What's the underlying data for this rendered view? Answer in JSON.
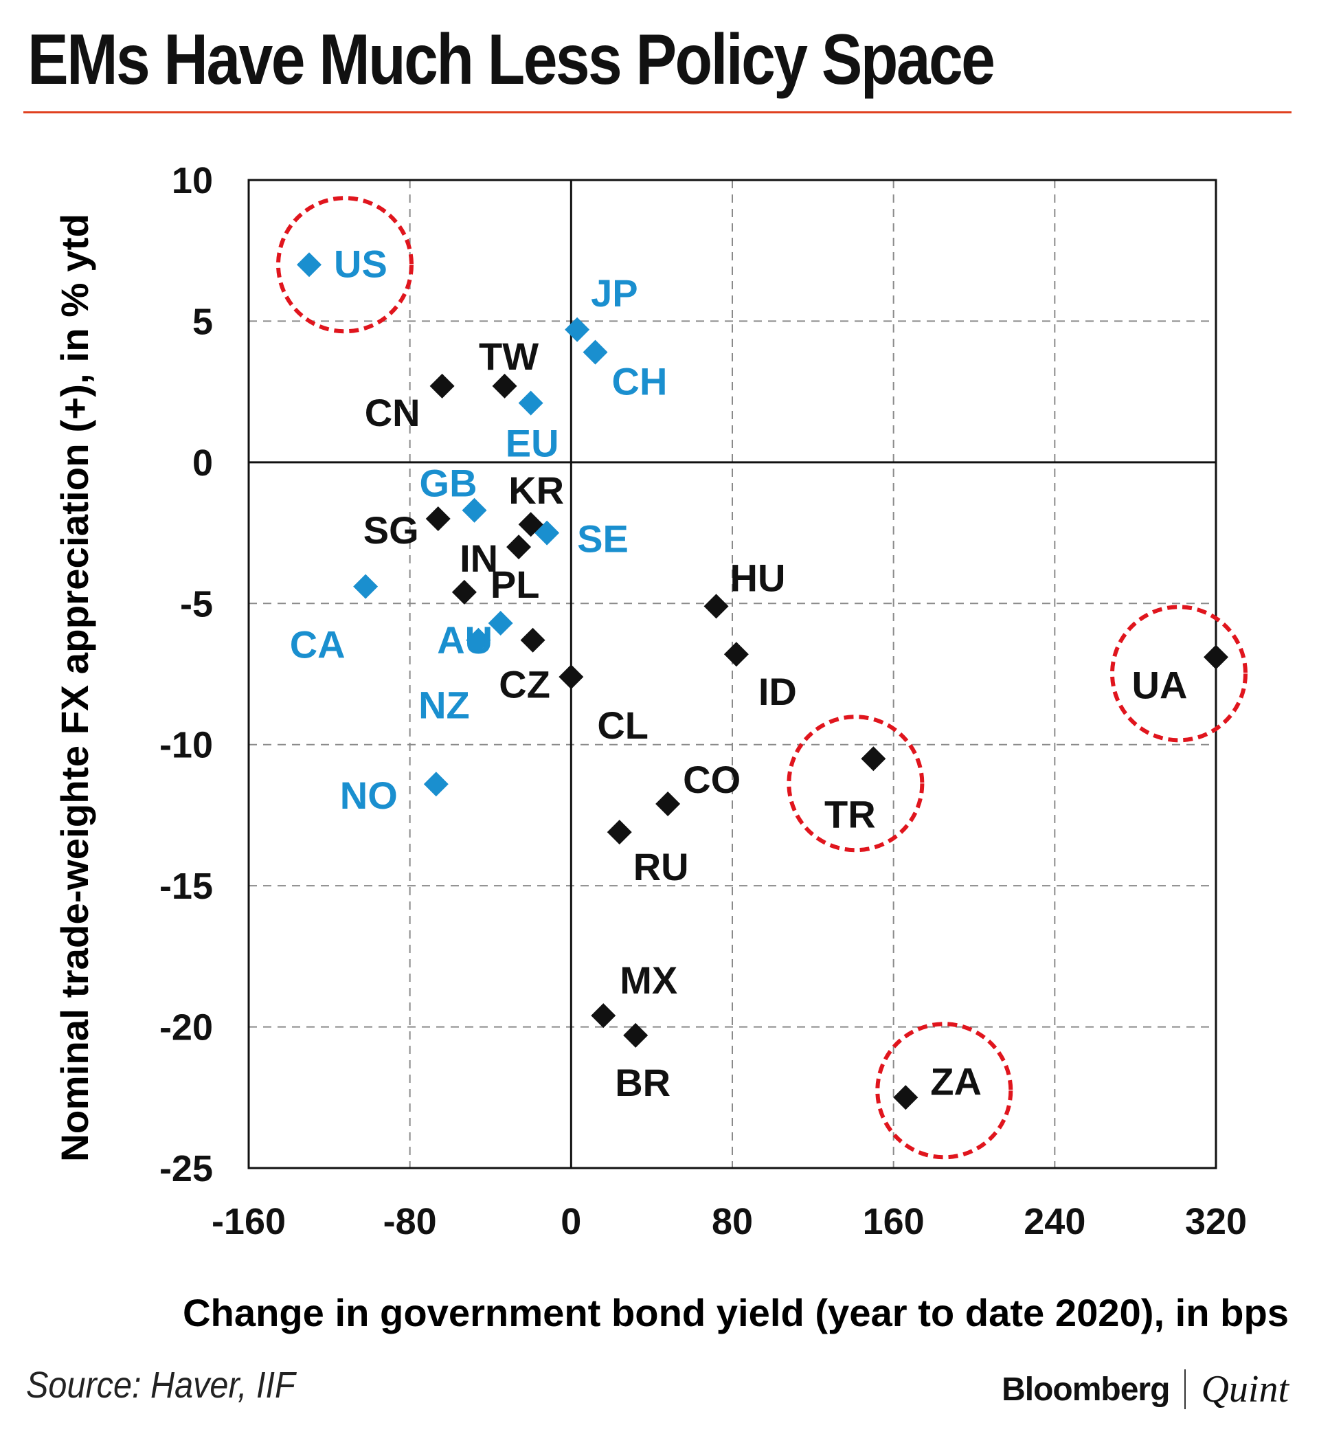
{
  "header": {
    "title": "EMs Have Much Less Policy Space"
  },
  "footer": {
    "source": "Source: Haver, IIF",
    "brand_primary": "Bloomberg",
    "brand_secondary": "Quint"
  },
  "colors": {
    "accent_rule": "#e0401f",
    "advanced_markers": "#1a8fcf",
    "emerging_markers": "#111111",
    "highlight_circle": "#e0151d"
  },
  "chart_data": {
    "type": "scatter",
    "title": "EMs Have Much Less Policy Space",
    "xlabel": "Change in government bond yield (year to date 2020), in bps",
    "ylabel": "Nominal trade-weighte FX appreciation (+), in % ytd",
    "xlim": [
      -160,
      320
    ],
    "ylim": [
      -25,
      10
    ],
    "xticks": [
      -160,
      -80,
      0,
      80,
      160,
      240,
      320
    ],
    "yticks": [
      10,
      5,
      0,
      -5,
      -10,
      -15,
      -20,
      -25
    ],
    "grid": true,
    "points": [
      {
        "label": "US",
        "x": -130,
        "y": 7.0,
        "group": "advanced",
        "highlight": true
      },
      {
        "label": "JP",
        "x": 3,
        "y": 4.7,
        "group": "advanced"
      },
      {
        "label": "CH",
        "x": 12,
        "y": 3.9,
        "group": "advanced"
      },
      {
        "label": "EU",
        "x": -20,
        "y": 2.1,
        "group": "advanced"
      },
      {
        "label": "GB",
        "x": -48,
        "y": -1.7,
        "group": "advanced"
      },
      {
        "label": "SE",
        "x": -12,
        "y": -2.5,
        "group": "advanced"
      },
      {
        "label": "CA",
        "x": -102,
        "y": -4.4,
        "group": "advanced"
      },
      {
        "label": "AU",
        "x": -35,
        "y": -5.7,
        "group": "advanced"
      },
      {
        "label": "NZ",
        "x": -46,
        "y": -6.3,
        "group": "advanced"
      },
      {
        "label": "NO",
        "x": -67,
        "y": -11.4,
        "group": "advanced"
      },
      {
        "label": "CN",
        "x": -64,
        "y": 2.7,
        "group": "emerging"
      },
      {
        "label": "TW",
        "x": -33,
        "y": 2.7,
        "group": "emerging"
      },
      {
        "label": "SG",
        "x": -66,
        "y": -2.0,
        "group": "emerging"
      },
      {
        "label": "KR",
        "x": -20,
        "y": -2.2,
        "group": "emerging"
      },
      {
        "label": "IN",
        "x": -26,
        "y": -3.0,
        "group": "emerging"
      },
      {
        "label": "PL",
        "x": -53,
        "y": -4.6,
        "group": "emerging"
      },
      {
        "label": "CZ",
        "x": -19,
        "y": -6.3,
        "group": "emerging"
      },
      {
        "label": "CL",
        "x": 0,
        "y": -7.6,
        "group": "emerging"
      },
      {
        "label": "HU",
        "x": 72,
        "y": -5.1,
        "group": "emerging"
      },
      {
        "label": "ID",
        "x": 82,
        "y": -6.8,
        "group": "emerging"
      },
      {
        "label": "UA",
        "x": 320,
        "y": -6.9,
        "group": "emerging",
        "highlight": true
      },
      {
        "label": "TR",
        "x": 150,
        "y": -10.5,
        "group": "emerging",
        "highlight": true
      },
      {
        "label": "CO",
        "x": 48,
        "y": -12.1,
        "group": "emerging"
      },
      {
        "label": "RU",
        "x": 24,
        "y": -13.1,
        "group": "emerging"
      },
      {
        "label": "MX",
        "x": 16,
        "y": -19.6,
        "group": "emerging"
      },
      {
        "label": "BR",
        "x": 32,
        "y": -20.3,
        "group": "emerging"
      },
      {
        "label": "ZA",
        "x": 166,
        "y": -22.5,
        "group": "emerging",
        "highlight": true
      }
    ]
  }
}
